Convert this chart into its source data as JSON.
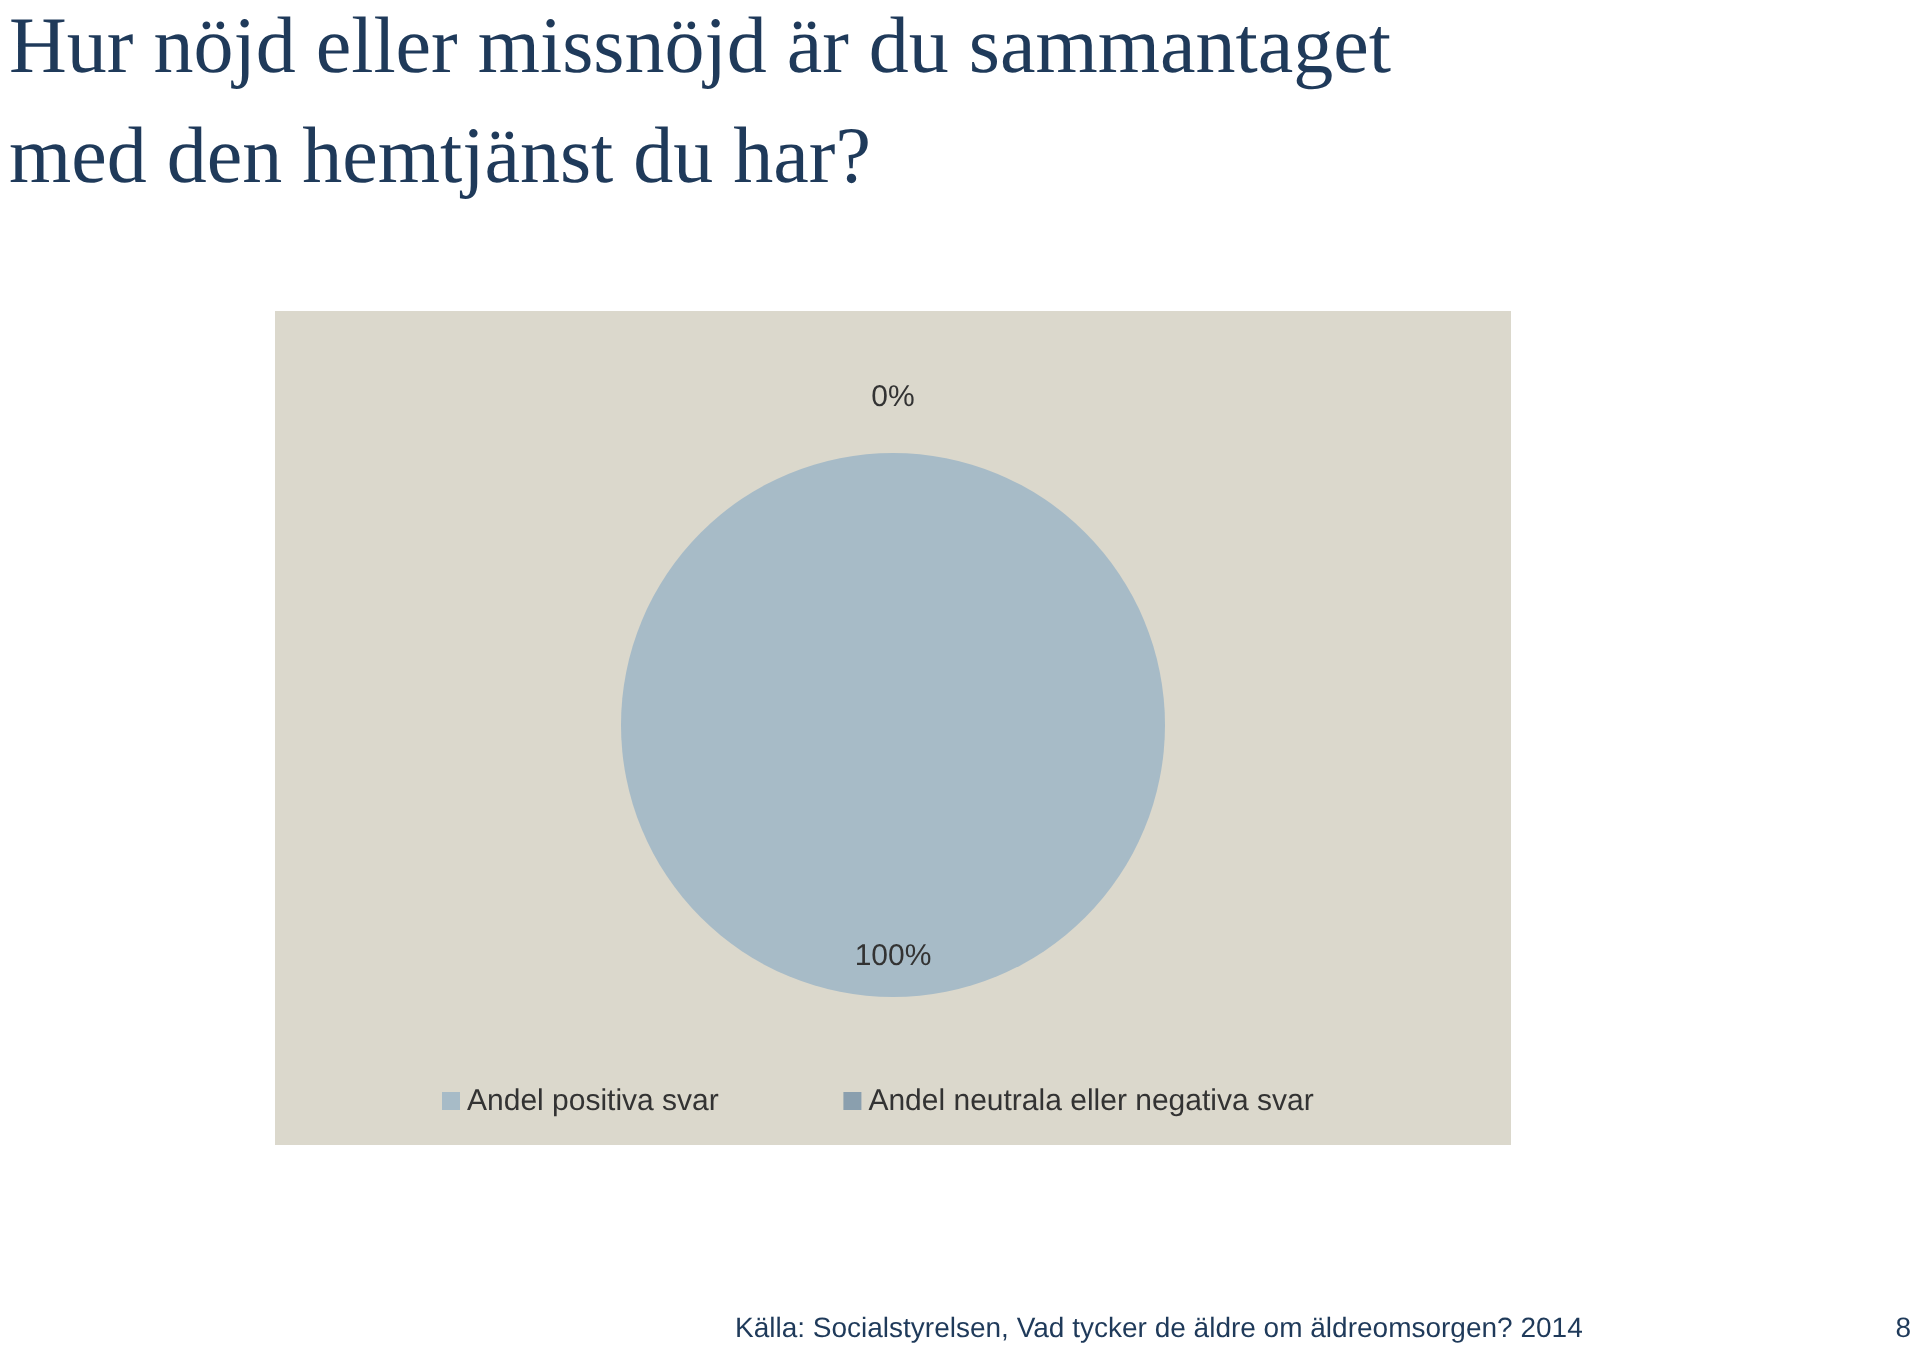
{
  "chart_data": {
    "type": "pie",
    "title": "Hur nöjd eller missnöjd är du sammantaget med den hemtjänst du har?",
    "categories": [
      "Andel positiva svar",
      "Andel neutrala eller negativa svar"
    ],
    "values": [
      100,
      0
    ],
    "colors": [
      "#a7bbc7",
      "#8a9fae"
    ],
    "value_labels": [
      "100%",
      "0%"
    ],
    "legend": "bottom",
    "annotations": [
      "Källa: Socialstyrelsen, Vad tycker de äldre om äldreomsorgen? 2014",
      "8"
    ]
  }
}
